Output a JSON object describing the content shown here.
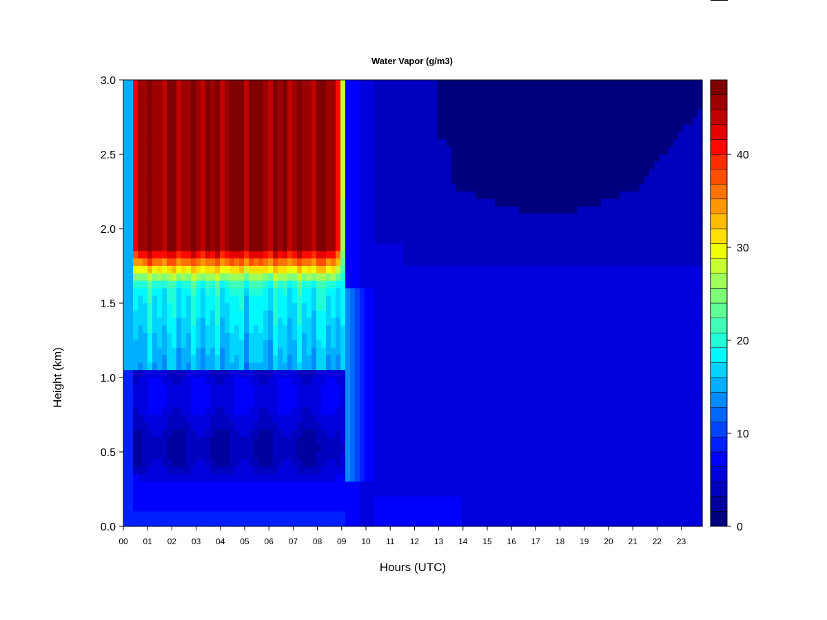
{
  "chart_data": {
    "type": "heatmap",
    "title": "Water Vapor (g/m3)",
    "xlabel": "Hours (UTC)",
    "ylabel": "Height (km)",
    "xlim": [
      0,
      24
    ],
    "ylim": [
      0,
      3
    ],
    "x_ticks": [
      "00",
      "01",
      "02",
      "03",
      "04",
      "05",
      "06",
      "07",
      "08",
      "09",
      "10",
      "11",
      "12",
      "13",
      "14",
      "15",
      "16",
      "17",
      "18",
      "19",
      "20",
      "21",
      "22",
      "23"
    ],
    "y_ticks": [
      "0.0",
      "0.5",
      "1.0",
      "1.5",
      "2.0",
      "2.5",
      "3.0"
    ],
    "colorbar": {
      "min": 0,
      "max": 48,
      "ticks": [
        "0",
        "10",
        "20",
        "30",
        "40"
      ],
      "levels": 24,
      "colors": [
        "#00007f",
        "#00009f",
        "#0000bf",
        "#0000df",
        "#0000ff",
        "#0020ff",
        "#0044ff",
        "#0068ff",
        "#008cff",
        "#00b0ff",
        "#00d4ff",
        "#00f8ff",
        "#20ffd8",
        "#40ffb8",
        "#60ff98",
        "#80ff78",
        "#a0ff58",
        "#c8ff30",
        "#f0ff08",
        "#ffe000",
        "#ffbc00",
        "#ff9800",
        "#ff7400",
        "#ff5000",
        "#ff2c00",
        "#ff0800",
        "#e40000",
        "#c00000",
        "#9c0000",
        "#7f0000"
      ]
    },
    "field": {
      "description_hours": [
        0,
        0.5,
        1,
        2,
        3,
        4,
        5,
        6,
        7,
        8,
        8.9,
        9.3,
        9.8,
        10.5,
        12,
        14,
        16,
        18,
        20,
        22,
        23.8
      ],
      "regions": [
        {
          "hours": [
            0.0,
            0.5
          ],
          "height_km": [
            0.0,
            3.0
          ],
          "value": 14
        },
        {
          "hours": [
            0.5,
            9.0
          ],
          "height_km": [
            1.85,
            3.0
          ],
          "value": 45
        },
        {
          "hours": [
            0.5,
            9.0
          ],
          "height_km": [
            1.6,
            1.85
          ],
          "value": 32
        },
        {
          "hours": [
            0.5,
            9.0
          ],
          "height_km": [
            1.05,
            1.6
          ],
          "value": 17
        },
        {
          "hours": [
            0.0,
            9.5
          ],
          "height_km": [
            0.0,
            1.05
          ],
          "value": 6
        },
        {
          "hours": [
            9.0,
            9.4
          ],
          "height_km": [
            1.5,
            3.0
          ],
          "value": 18
        },
        {
          "hours": [
            9.4,
            24.0
          ],
          "height_km": [
            0.0,
            3.0
          ],
          "value": 5
        },
        {
          "hours": [
            12.0,
            24.0
          ],
          "height_km": [
            2.3,
            3.0
          ],
          "value": 2
        }
      ]
    }
  }
}
